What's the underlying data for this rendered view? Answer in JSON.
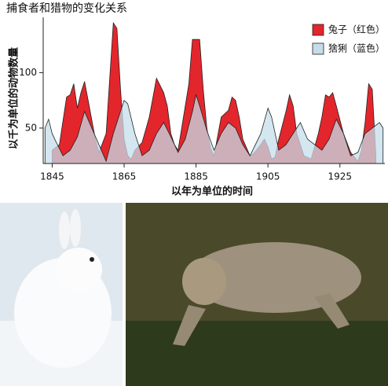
{
  "chart_data": {
    "type": "area",
    "title": "捕食者和猎物的变化关系",
    "x_label": "以年为单位的时间",
    "y_label": "以千为单位的动物数量",
    "xlim": [
      1842.5,
      1937.5
    ],
    "ylim": [
      18,
      150
    ],
    "xticks": [
      1845,
      1865,
      1885,
      1905,
      1925
    ],
    "yticks": [
      50,
      100
    ],
    "legend": "top-right",
    "series": [
      {
        "name": "兔子（红色）",
        "color": "#e3262c",
        "x": [
          1845,
          1847,
          1849,
          1850,
          1851,
          1852,
          1853,
          1854,
          1855,
          1857,
          1858,
          1860,
          1862,
          1863,
          1864,
          1865,
          1866,
          1867,
          1868,
          1870,
          1872,
          1874,
          1876,
          1877,
          1878,
          1879,
          1880,
          1883,
          1884,
          1886,
          1887,
          1888,
          1889,
          1890,
          1892,
          1894,
          1895,
          1896,
          1897,
          1898,
          1900,
          1901,
          1903,
          1904,
          1905,
          1906,
          1907,
          1908,
          1910,
          1911,
          1912,
          1913,
          1915,
          1917,
          1919,
          1920,
          1921,
          1922,
          1923,
          1924,
          1926,
          1928,
          1930,
          1931,
          1932,
          1933,
          1934,
          1935
        ],
        "values": [
          30,
          35,
          78,
          80,
          90,
          68,
          82,
          92,
          75,
          40,
          28,
          45,
          145,
          140,
          85,
          40,
          25,
          22,
          30,
          37,
          60,
          95,
          82,
          70,
          45,
          35,
          30,
          90,
          130,
          130,
          85,
          50,
          32,
          25,
          60,
          66,
          78,
          75,
          60,
          40,
          25,
          27,
          35,
          40,
          33,
          22,
          24,
          40,
          65,
          80,
          70,
          45,
          25,
          22,
          45,
          60,
          80,
          78,
          82,
          70,
          45,
          28,
          20,
          30,
          55,
          90,
          85,
          25
        ]
      },
      {
        "name": "猞猁（蓝色）",
        "color": "#c6dde9",
        "x": [
          1843,
          1844,
          1845,
          1846,
          1848,
          1850,
          1852,
          1854,
          1856,
          1858,
          1860,
          1862,
          1864,
          1865,
          1866,
          1868,
          1870,
          1872,
          1874,
          1876,
          1878,
          1880,
          1882,
          1884,
          1885,
          1886,
          1888,
          1890,
          1892,
          1894,
          1896,
          1898,
          1900,
          1903,
          1905,
          1906,
          1908,
          1910,
          1912,
          1914,
          1916,
          1918,
          1920,
          1922,
          1924,
          1926,
          1928,
          1930,
          1932,
          1934,
          1936,
          1937
        ],
        "values": [
          50,
          58,
          45,
          38,
          25,
          30,
          42,
          65,
          50,
          35,
          20,
          45,
          65,
          75,
          72,
          45,
          25,
          30,
          45,
          55,
          42,
          28,
          40,
          65,
          80,
          70,
          48,
          30,
          45,
          55,
          50,
          35,
          25,
          45,
          68,
          60,
          30,
          35,
          45,
          55,
          40,
          35,
          30,
          40,
          58,
          45,
          25,
          28,
          45,
          50,
          55,
          50
        ]
      }
    ]
  }
}
